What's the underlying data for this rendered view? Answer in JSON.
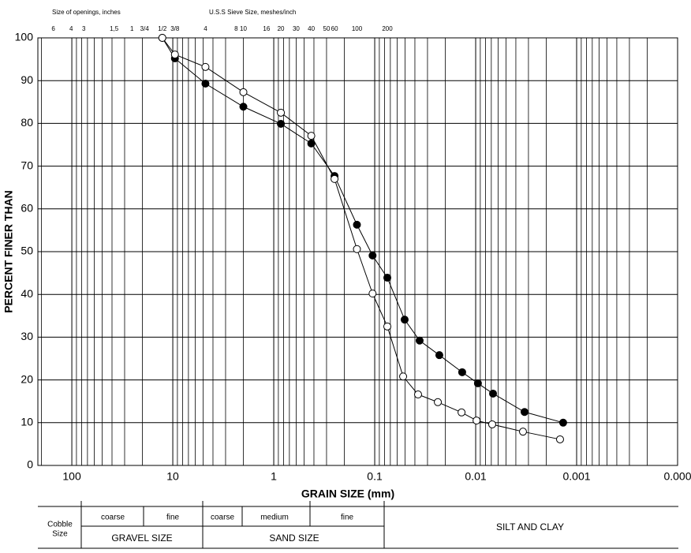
{
  "chart_data": {
    "type": "line",
    "xscale": "log",
    "xlabel": "GRAIN SIZE (mm)",
    "ylabel": "PERCENT FINER THAN",
    "xlim": [
      217,
      0.0001
    ],
    "xticks": [
      100,
      10,
      1,
      0.1,
      0.01,
      0.001,
      {
        "value": 0.0001,
        "label": "0.000"
      }
    ],
    "ylim": [
      0,
      100
    ],
    "yticks": [
      0,
      10,
      20,
      30,
      40,
      50,
      60,
      70,
      80,
      90,
      100
    ],
    "grid": true,
    "top_axis": {
      "inch_title": "Size of openings, inches",
      "inch_ticks": [
        {
          "value": 152.4,
          "label": "6"
        },
        {
          "value": 101.6,
          "label": "4"
        },
        {
          "value": 76.2,
          "label": "3"
        },
        {
          "value": 38.1,
          "label": "1,5"
        },
        {
          "value": 25.4,
          "label": "1"
        },
        {
          "value": 19.05,
          "label": "3/4"
        },
        {
          "value": 12.7,
          "label": "1/2"
        },
        {
          "value": 9.525,
          "label": "3/8"
        }
      ],
      "sieve_title": "U.S.S Sieve Size, meshes/inch",
      "sieve_ticks": [
        {
          "value": 4.75,
          "label": "4"
        },
        {
          "value": 2.36,
          "label": "8"
        },
        {
          "value": 2.0,
          "label": "10"
        },
        {
          "value": 1.18,
          "label": "16"
        },
        {
          "value": 0.85,
          "label": "20"
        },
        {
          "value": 0.6,
          "label": "30"
        },
        {
          "value": 0.425,
          "label": "40"
        },
        {
          "value": 0.3,
          "label": "50"
        },
        {
          "value": 0.25,
          "label": "60"
        },
        {
          "value": 0.15,
          "label": "100"
        },
        {
          "value": 0.075,
          "label": "200"
        }
      ]
    },
    "series": [
      {
        "color": "#000000",
        "fill": "#000000",
        "x": [
          12.7,
          9.525,
          4.75,
          2.0,
          0.85,
          0.425,
          0.25,
          0.15,
          0.105,
          0.075,
          0.0505,
          0.0359,
          0.0229,
          0.0136,
          0.0095,
          0.00673,
          0.00328,
          0.00136
        ],
        "values": [
          100,
          95.2,
          89.3,
          83.9,
          79.9,
          75.3,
          67.7,
          56.3,
          49.1,
          43.9,
          34.1,
          29.2,
          25.8,
          21.8,
          19.2,
          16.8,
          12.5,
          10.0
        ]
      },
      {
        "color": "#000000",
        "fill": "#ffffff",
        "x": [
          12.7,
          9.525,
          4.75,
          2.0,
          0.85,
          0.425,
          0.25,
          0.15,
          0.105,
          0.075,
          0.0523,
          0.0372,
          0.0237,
          0.0138,
          0.0098,
          0.00686,
          0.0034,
          0.00146
        ],
        "values": [
          100,
          96.1,
          93.2,
          87.3,
          82.5,
          77.1,
          67.0,
          50.6,
          40.2,
          32.5,
          20.8,
          16.6,
          14.8,
          12.4,
          10.5,
          9.6,
          7.9,
          6.1
        ]
      }
    ]
  },
  "classification": {
    "cobble": [
      "Cobble",
      "Size"
    ],
    "gravel": {
      "name": "GRAVEL SIZE",
      "coarse": "coarse",
      "fine": "fine"
    },
    "sand": {
      "name": "SAND SIZE",
      "coarse": "coarse",
      "medium": "medium",
      "fine": "fine"
    },
    "silt_clay": "SILT AND CLAY"
  }
}
